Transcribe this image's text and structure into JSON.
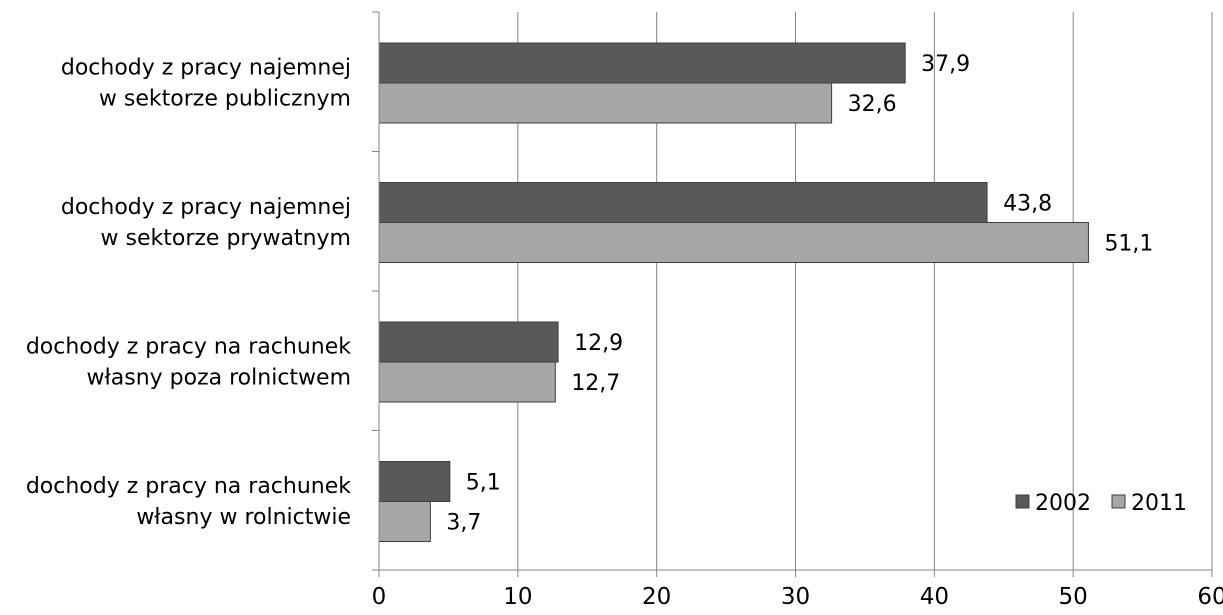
{
  "chart_data": {
    "type": "bar",
    "orientation": "horizontal",
    "categories": [
      [
        "dochody z pracy najemnej",
        "w sektorze publicznym"
      ],
      [
        "dochody z pracy najemnej",
        "w sektorze prywatnym"
      ],
      [
        "dochody z pracy na rachunek",
        "własny poza rolnictwem"
      ],
      [
        "dochody z pracy na rachunek",
        "własny w rolnictwie"
      ]
    ],
    "series": [
      {
        "name": "2002",
        "color": "#595959",
        "values": [
          37.9,
          43.8,
          12.9,
          5.1
        ],
        "labels": [
          "37,9",
          "43,8",
          "12,9",
          "5,1"
        ]
      },
      {
        "name": "2011",
        "color": "#a6a6a6",
        "values": [
          32.6,
          51.1,
          12.7,
          3.7
        ],
        "labels": [
          "32,6",
          "51,1",
          "12,7",
          "3,7"
        ]
      }
    ],
    "xlim": [
      0,
      60
    ],
    "xticks": [
      0,
      10,
      20,
      30,
      40,
      50,
      60
    ],
    "grid": "vertical",
    "legend": {
      "position": "bottom-right",
      "entries": [
        "2002",
        "2011"
      ]
    },
    "title": "",
    "xlabel": "",
    "ylabel": ""
  }
}
